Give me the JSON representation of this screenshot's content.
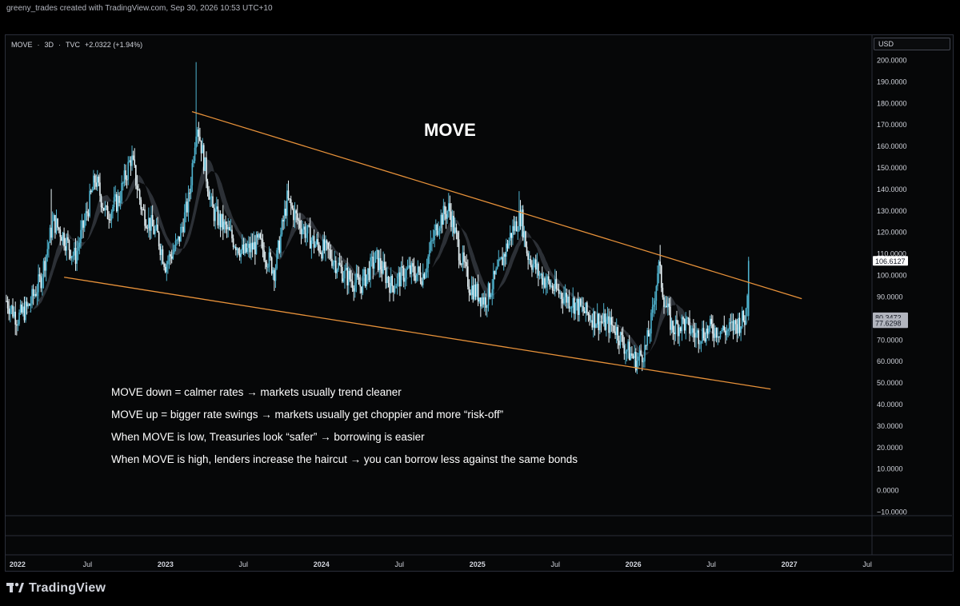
{
  "caption": "greeny_trades created with TradingView.com, Sep 30, 2026 10:53 UTC+10",
  "symbol": {
    "name": "MOVE",
    "interval": "3D",
    "source": "TVC",
    "change": "+2.0322 (+1.94%)"
  },
  "currency": "USD",
  "overlay_title": "MOVE",
  "notes": [
    "MOVE down = calmer rates → markets usually trend cleaner",
    "MOVE up = bigger rate swings → markets usually get choppier and more “risk-off”",
    "When MOVE is low, Treasuries look “safer” → borrowing is easier",
    "When MOVE is high, lenders increase the haircut → you can borrow less against the same bonds"
  ],
  "brand": "TradingView",
  "colors": {
    "candle": "#4fb3cf",
    "candle_alt": "#e8f4f8",
    "trendline": "#e8923a",
    "ma_band": "#3a3f45",
    "price_label_bg": "#ffffff",
    "ma_label_bg": "#b2b5be"
  },
  "chart_data": {
    "type": "candlestick",
    "title": "MOVE",
    "y_range": [
      -10,
      200
    ],
    "y_ticks": [
      "200.0000",
      "190.0000",
      "180.0000",
      "170.0000",
      "160.0000",
      "150.0000",
      "140.0000",
      "130.0000",
      "120.0000",
      "110.0000",
      "100.0000",
      "90.0000",
      "80.0000",
      "70.0000",
      "60.0000",
      "50.0000",
      "40.0000",
      "30.0000",
      "20.0000",
      "10.0000",
      "0.0000",
      "−10.0000"
    ],
    "y_tick_values": [
      200,
      190,
      180,
      170,
      160,
      150,
      140,
      130,
      120,
      110,
      100,
      90,
      80,
      70,
      60,
      50,
      40,
      30,
      20,
      10,
      0,
      -10
    ],
    "x_ticks": [
      {
        "label": "2022",
        "t": 2022.0,
        "bold": true
      },
      {
        "label": "Jul",
        "t": 2022.5,
        "bold": false
      },
      {
        "label": "2023",
        "t": 2023.0,
        "bold": true
      },
      {
        "label": "Jul",
        "t": 2023.5,
        "bold": false
      },
      {
        "label": "2024",
        "t": 2024.0,
        "bold": true
      },
      {
        "label": "Jul",
        "t": 2024.5,
        "bold": false
      },
      {
        "label": "2025",
        "t": 2025.0,
        "bold": true
      },
      {
        "label": "Jul",
        "t": 2025.5,
        "bold": false
      },
      {
        "label": "2026",
        "t": 2026.0,
        "bold": true
      },
      {
        "label": "Jul",
        "t": 2026.5,
        "bold": false
      },
      {
        "label": "2027",
        "t": 2027.0,
        "bold": true
      },
      {
        "label": "Jul",
        "t": 2027.5,
        "bold": false
      }
    ],
    "x_range": [
      2021.98,
      2027.52
    ],
    "price_labels": [
      {
        "value": 106.6127,
        "text": "106.6127",
        "kind": "last"
      },
      {
        "value": 80.3472,
        "text": "80.3472",
        "kind": "ma"
      },
      {
        "value": 77.6298,
        "text": "77.6298",
        "kind": "ma"
      }
    ],
    "trendlines": [
      {
        "name": "upper",
        "t1": 2023.17,
        "v1": 176,
        "t2": 2027.08,
        "v2": 89
      },
      {
        "name": "lower",
        "t1": 2022.35,
        "v1": 99,
        "t2": 2026.88,
        "v2": 47
      }
    ],
    "series_path": [
      [
        2021.98,
        88
      ],
      [
        2022.05,
        80
      ],
      [
        2022.12,
        85
      ],
      [
        2022.2,
        98
      ],
      [
        2022.28,
        125
      ],
      [
        2022.33,
        120
      ],
      [
        2022.42,
        108
      ],
      [
        2022.5,
        130
      ],
      [
        2022.55,
        145
      ],
      [
        2022.62,
        128
      ],
      [
        2022.7,
        135
      ],
      [
        2022.78,
        155
      ],
      [
        2022.85,
        130
      ],
      [
        2022.95,
        118
      ],
      [
        2023.0,
        105
      ],
      [
        2023.08,
        115
      ],
      [
        2023.15,
        135
      ],
      [
        2023.2,
        172
      ],
      [
        2023.23,
        160
      ],
      [
        2023.3,
        130
      ],
      [
        2023.4,
        120
      ],
      [
        2023.5,
        110
      ],
      [
        2023.6,
        115
      ],
      [
        2023.7,
        102
      ],
      [
        2023.78,
        135
      ],
      [
        2023.85,
        125
      ],
      [
        2023.95,
        115
      ],
      [
        2024.05,
        110
      ],
      [
        2024.15,
        100
      ],
      [
        2024.25,
        95
      ],
      [
        2024.35,
        108
      ],
      [
        2024.45,
        95
      ],
      [
        2024.55,
        102
      ],
      [
        2024.65,
        100
      ],
      [
        2024.75,
        125
      ],
      [
        2024.82,
        131
      ],
      [
        2024.88,
        112
      ],
      [
        2024.95,
        95
      ],
      [
        2025.05,
        88
      ],
      [
        2025.15,
        105
      ],
      [
        2025.22,
        120
      ],
      [
        2025.28,
        128
      ],
      [
        2025.32,
        110
      ],
      [
        2025.4,
        100
      ],
      [
        2025.5,
        93
      ],
      [
        2025.6,
        88
      ],
      [
        2025.7,
        82
      ],
      [
        2025.8,
        78
      ],
      [
        2025.88,
        76
      ],
      [
        2025.95,
        66
      ],
      [
        2026.02,
        60
      ],
      [
        2026.08,
        66
      ],
      [
        2026.12,
        80
      ],
      [
        2026.16,
        105
      ],
      [
        2026.2,
        88
      ],
      [
        2026.25,
        75
      ],
      [
        2026.32,
        78
      ],
      [
        2026.4,
        72
      ],
      [
        2026.5,
        75
      ],
      [
        2026.6,
        74
      ],
      [
        2026.68,
        78
      ],
      [
        2026.72,
        80
      ],
      [
        2026.74,
        106.6
      ]
    ],
    "spike_highs": [
      {
        "t": 2023.2,
        "v": 199
      },
      {
        "t": 2025.27,
        "v": 139
      },
      {
        "t": 2024.82,
        "v": 136
      },
      {
        "t": 2026.17,
        "v": 114
      },
      {
        "t": 2022.8,
        "v": 159
      },
      {
        "t": 2022.27,
        "v": 140
      }
    ]
  }
}
